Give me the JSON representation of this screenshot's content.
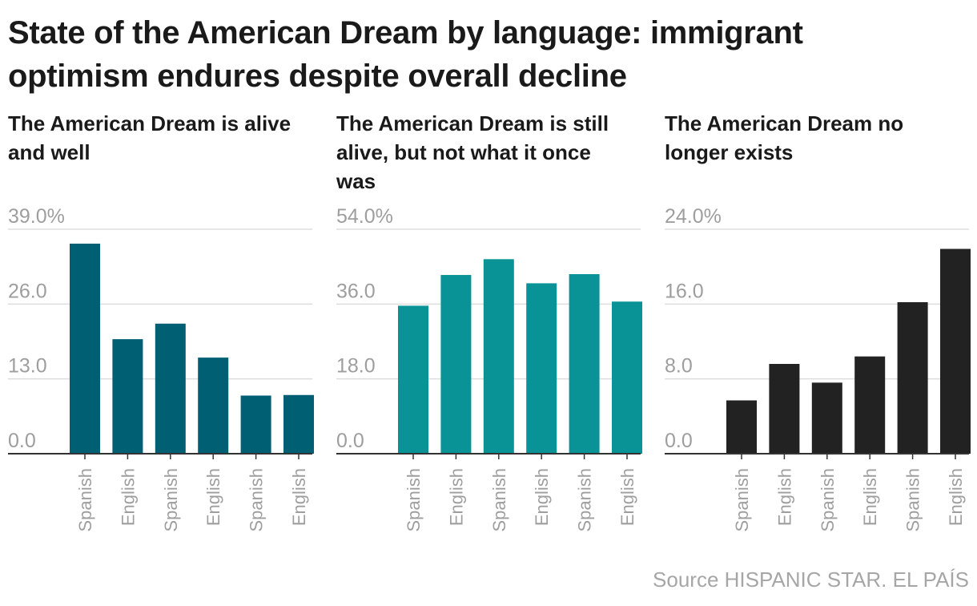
{
  "title": "State of the American Dream by language: immigrant optimism endures despite overall decline",
  "source": "Source HISPANIC STAR. EL PAÍS",
  "colors": {
    "grid": "#dddddd",
    "axis": "#333333",
    "tick_label": "#9e9e9e",
    "category_label": "#9e9e9e"
  },
  "chart_data": [
    {
      "type": "bar",
      "title": "The American Dream is alive and well",
      "categories": [
        "Spanish",
        "English",
        "Spanish",
        "English",
        "Spanish",
        "English"
      ],
      "values": [
        36.5,
        19.9,
        22.6,
        16.7,
        10.1,
        10.2
      ],
      "ylim": [
        0,
        39
      ],
      "yticks": [
        "0.0",
        "13.0",
        "26.0",
        "39.0%"
      ],
      "color": "#005f73",
      "grid": true
    },
    {
      "type": "bar",
      "title": "The American Dream is still alive, but not what it once was",
      "categories": [
        "Spanish",
        "English",
        "Spanish",
        "English",
        "Spanish",
        "English"
      ],
      "values": [
        35.6,
        43.0,
        46.8,
        41.0,
        43.2,
        36.6
      ],
      "ylim": [
        0,
        54
      ],
      "yticks": [
        "0.0",
        "18.0",
        "36.0",
        "54.0%"
      ],
      "color": "#0a9396",
      "grid": true
    },
    {
      "type": "bar",
      "title": "The American Dream no longer exists",
      "categories": [
        "Spanish",
        "English",
        "Spanish",
        "English",
        "Spanish",
        "English"
      ],
      "values": [
        5.7,
        9.6,
        7.6,
        10.4,
        16.2,
        21.9
      ],
      "ylim": [
        0,
        24
      ],
      "yticks": [
        "0.0",
        "8.0",
        "16.0",
        "24.0%"
      ],
      "color": "#222222",
      "grid": true
    }
  ]
}
